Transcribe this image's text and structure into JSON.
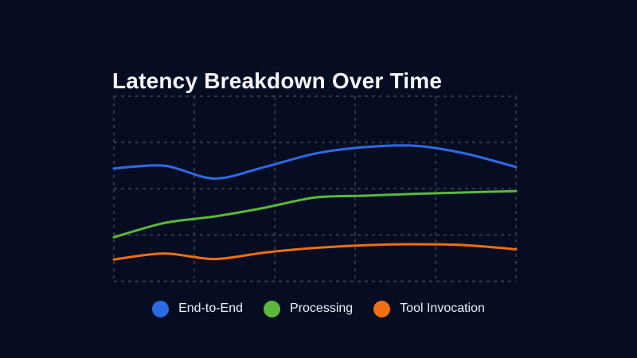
{
  "chart_data": {
    "type": "line",
    "title": "Latency Breakdown Over Time",
    "xlabel": "",
    "ylabel": "",
    "x": [
      0,
      1,
      2,
      3,
      4,
      5,
      6,
      7,
      8
    ],
    "xlim": [
      0,
      8
    ],
    "ylim": [
      0,
      4
    ],
    "grid": "dashed, 6 vertical x 5 horizontal lines, no tick labels",
    "legend_position": "bottom",
    "series": [
      {
        "name": "End-to-End",
        "color": "#2d6be6",
        "values": [
          2.44,
          2.5,
          2.22,
          2.47,
          2.76,
          2.9,
          2.93,
          2.76,
          2.47
        ]
      },
      {
        "name": "Processing",
        "color": "#5bb83c",
        "values": [
          0.95,
          1.26,
          1.4,
          1.59,
          1.81,
          1.85,
          1.89,
          1.92,
          1.95
        ]
      },
      {
        "name": "Tool Invocation",
        "color": "#ee7011",
        "values": [
          0.47,
          0.6,
          0.48,
          0.62,
          0.72,
          0.78,
          0.8,
          0.78,
          0.69
        ]
      }
    ]
  },
  "colors": {
    "background": "#060d23",
    "grid": "#4d576b",
    "title_text": "#f5f7fa",
    "legend_text": "#edf0f6",
    "series_blue": "#2d6be6",
    "series_green": "#5bb83c",
    "series_orange": "#ee7011"
  }
}
